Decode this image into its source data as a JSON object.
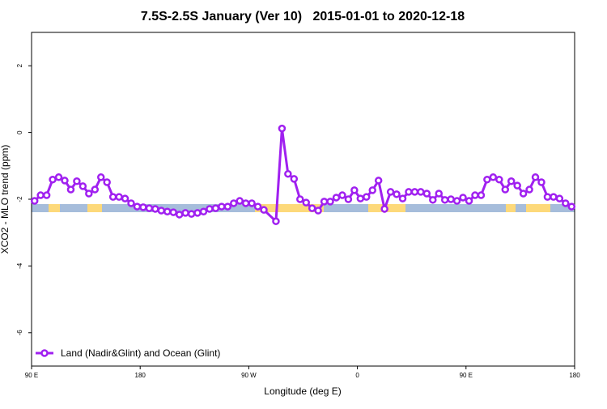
{
  "chart_data": {
    "type": "line",
    "title": "7.5S-2.5S January (Ver 10)   2015-01-01 to 2020-12-18",
    "x_label": "Longitude (deg E)",
    "y_label": "XCO2 - MLO trend (ppm)",
    "xlim": [
      90,
      540
    ],
    "ylim": [
      -7,
      3
    ],
    "xticks": [
      {
        "value": 90,
        "label": "90 E"
      },
      180,
      {
        "value": 270,
        "label": "90 W"
      },
      {
        "value": 360,
        "label": "0"
      },
      {
        "value": 450,
        "label": "90 E"
      },
      {
        "value": 540,
        "label": "180"
      }
    ],
    "yticks": [
      -6,
      -4,
      -2,
      0,
      2
    ],
    "legend": "bottom-left",
    "series": [
      {
        "name": "Land (Nadir&Glint) and Ocean (Glint)",
        "color": "#a020f0",
        "x": [
          92.5,
          97.5,
          102.5,
          107.5,
          112.5,
          117.5,
          122.5,
          127.5,
          132.5,
          137.5,
          142.5,
          147.5,
          152.5,
          157.5,
          162.5,
          167.5,
          172.5,
          177.5,
          182.5,
          187.5,
          192.5,
          197.5,
          202.5,
          207.5,
          212.5,
          217.5,
          222.5,
          227.5,
          232.5,
          237.5,
          242.5,
          247.5,
          252.5,
          257.5,
          262.5,
          267.5,
          272.5,
          277.5,
          282.5,
          292.5,
          297.5,
          302.5,
          307.5,
          312.5,
          317.5,
          322.5,
          327.5,
          332.5,
          337.5,
          342.5,
          347.5,
          352.5,
          357.5,
          362.5,
          367.5,
          372.5,
          377.5,
          382.5,
          387.5,
          392.5,
          397.5,
          402.5,
          407.5,
          412.5,
          417.5,
          422.5,
          427.5,
          432.5,
          437.5,
          442.5,
          447.5,
          452.5,
          457.5,
          462.5,
          467.5,
          472.5,
          477.5,
          482.5,
          487.5,
          492.5,
          497.5,
          502.5,
          507.5,
          512.5,
          517.5,
          522.5,
          527.5,
          532.5,
          537.5
        ],
        "values": [
          -2.05,
          -1.88,
          -1.88,
          -1.41,
          -1.34,
          -1.44,
          -1.71,
          -1.46,
          -1.61,
          -1.83,
          -1.71,
          -1.34,
          -1.49,
          -1.93,
          -1.93,
          -1.98,
          -2.12,
          -2.22,
          -2.24,
          -2.27,
          -2.29,
          -2.34,
          -2.37,
          -2.39,
          -2.46,
          -2.41,
          -2.44,
          -2.41,
          -2.37,
          -2.29,
          -2.27,
          -2.22,
          -2.22,
          -2.12,
          -2.05,
          -2.12,
          -2.12,
          -2.22,
          -2.32,
          -2.66,
          0.12,
          -1.24,
          -1.39,
          -2.0,
          -2.1,
          -2.27,
          -2.34,
          -2.07,
          -2.07,
          -1.95,
          -1.88,
          -2.0,
          -1.73,
          -1.98,
          -1.93,
          -1.73,
          -1.44,
          -2.29,
          -1.78,
          -1.85,
          -1.98,
          -1.78,
          -1.78,
          -1.78,
          -1.83,
          -2.02,
          -1.83,
          -2.02,
          -2.0,
          -2.05,
          -1.95,
          -2.05,
          -1.88,
          -1.88,
          -1.41,
          -1.34,
          -1.41,
          -1.71,
          -1.46,
          -1.59,
          -1.83,
          -1.71,
          -1.34,
          -1.49,
          -1.93,
          -1.93,
          -1.98,
          -2.12,
          -2.22
        ]
      }
    ]
  }
}
